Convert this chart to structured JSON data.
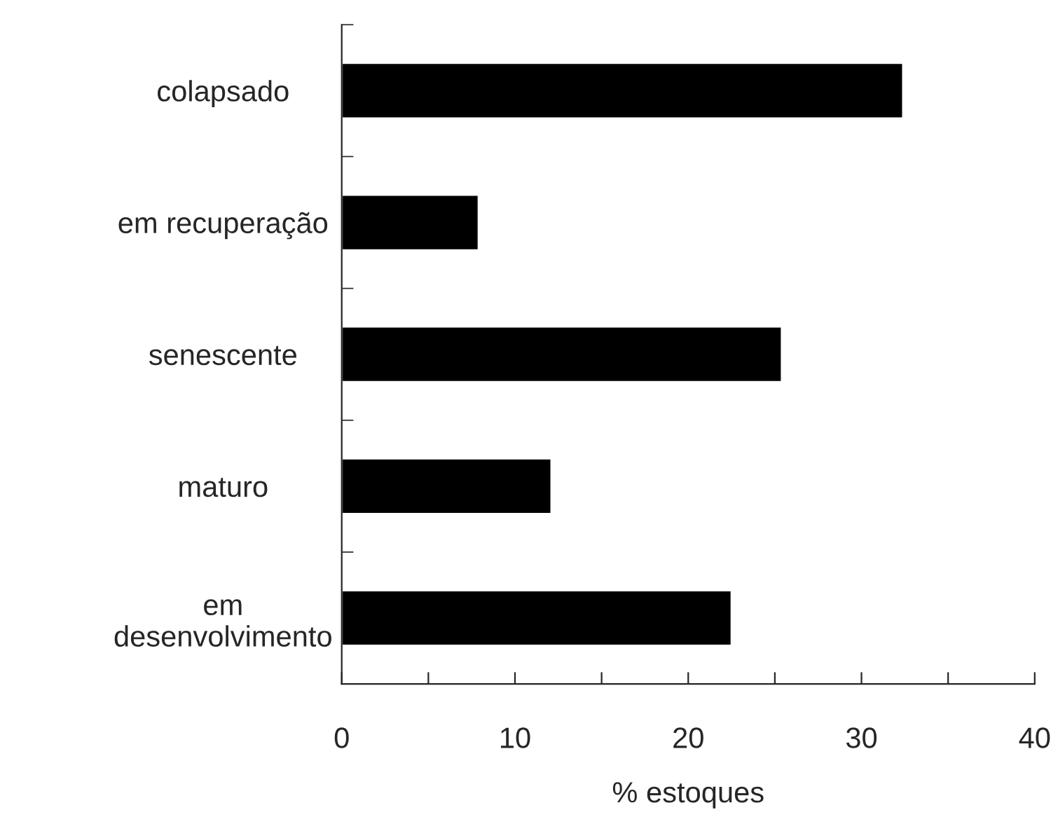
{
  "chart_data": {
    "type": "bar",
    "orientation": "horizontal",
    "xlabel": "% estoques",
    "categories": [
      "colapsado",
      "em recuperação",
      "senescente",
      "maturo",
      "em\ndesenvolvimento"
    ],
    "values": [
      32.4,
      7.9,
      25.4,
      12.1,
      22.5
    ],
    "color": "#000000",
    "xlim": [
      0,
      40
    ],
    "xticks": [
      0,
      {
        "value": 5,
        "label": null
      },
      10,
      {
        "value": 15,
        "label": null
      },
      20,
      {
        "value": 25,
        "label": null
      },
      30,
      {
        "value": 35,
        "label": null
      },
      40
    ],
    "grid": false,
    "legend": false
  }
}
